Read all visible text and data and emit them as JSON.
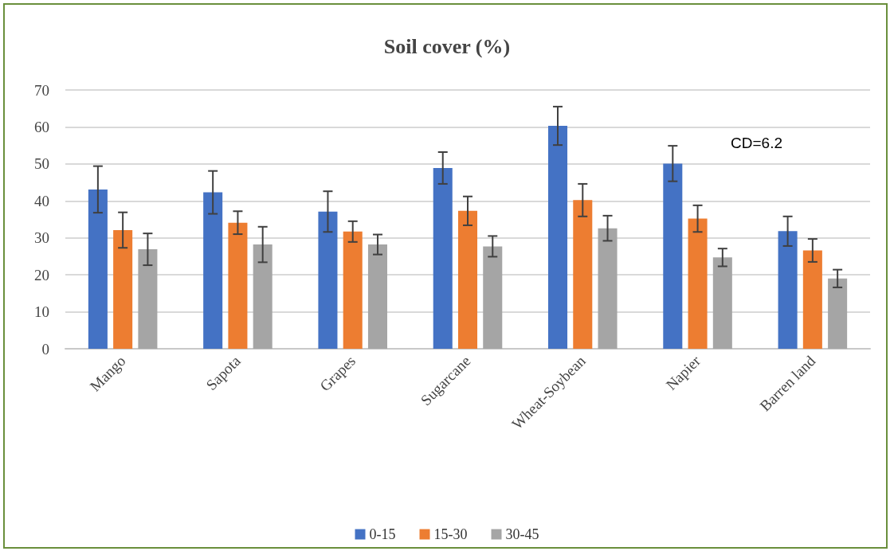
{
  "chart_data": {
    "type": "bar",
    "title": "Soil cover (%)",
    "categories": [
      "Mango",
      "Sapota",
      "Grapes",
      "Sugarcane",
      "Wheat-Soybean",
      "Napier",
      "Barren land"
    ],
    "series": [
      {
        "name": "0-15",
        "color": "#4472c4",
        "values": [
          43.1,
          42.3,
          37.1,
          48.9,
          60.3,
          50.1,
          31.8
        ],
        "errors": [
          6.3,
          5.8,
          5.5,
          4.3,
          5.2,
          4.8,
          4.0
        ]
      },
      {
        "name": "15-30",
        "color": "#ed7d31",
        "values": [
          32.1,
          34.1,
          31.7,
          37.3,
          40.2,
          35.2,
          26.6
        ],
        "errors": [
          4.8,
          3.1,
          2.8,
          3.9,
          4.4,
          3.6,
          3.1
        ]
      },
      {
        "name": "30-45",
        "color": "#a5a5a5",
        "values": [
          26.9,
          28.2,
          28.2,
          27.7,
          32.6,
          24.7,
          19.0
        ],
        "errors": [
          4.3,
          4.8,
          2.7,
          2.8,
          3.4,
          2.4,
          2.4
        ]
      }
    ],
    "ylim": [
      0,
      70
    ],
    "yticks": [
      0,
      10,
      20,
      30,
      40,
      50,
      60,
      70
    ],
    "grid": "y",
    "legend": "bottom",
    "annotations": [
      "CD=6.2"
    ]
  }
}
